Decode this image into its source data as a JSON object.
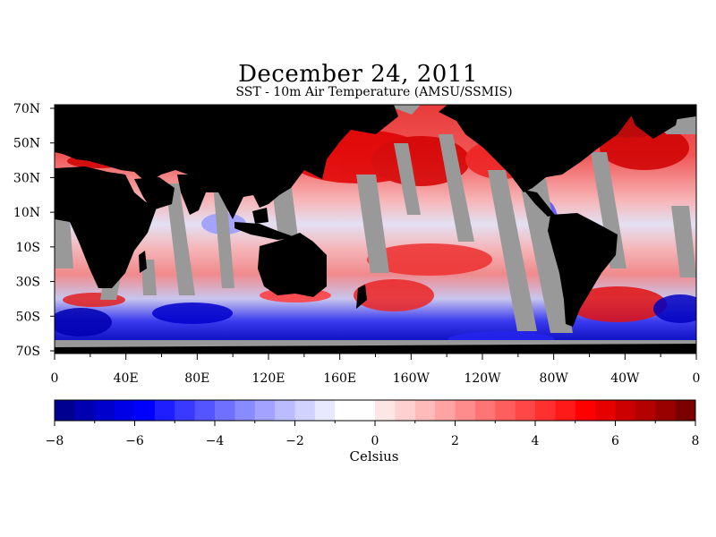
{
  "title": "December 24, 2011",
  "subtitle": "SST - 10m Air Temperature (AMSU/SSMIS)",
  "map": {
    "lat_labels": [
      "70N",
      "50N",
      "30N",
      "10N",
      "10S",
      "30S",
      "50S",
      "70S"
    ],
    "lon_labels": [
      "0",
      "40E",
      "80E",
      "120E",
      "160E",
      "160W",
      "120W",
      "80W",
      "40W",
      "0"
    ],
    "colors": {
      "land": "#000000",
      "no_data": "#999999",
      "ocean_base": "#f5c9cc"
    }
  },
  "colorbar": {
    "title": "Celsius",
    "min": -8,
    "max": 8,
    "step": 0.5,
    "tick_labels": [
      "-8",
      "-6",
      "-4",
      "-2",
      "0",
      "2",
      "4",
      "6",
      "8"
    ],
    "colors": [
      "#000090",
      "#0000b0",
      "#0000cc",
      "#0000e6",
      "#0000ff",
      "#1e1eff",
      "#3a3aff",
      "#5555ff",
      "#7070ff",
      "#8a8aff",
      "#a3a3ff",
      "#bbbbff",
      "#d2d2ff",
      "#e8e8ff",
      "#ffffff",
      "#ffffff",
      "#ffe6e6",
      "#ffd0d0",
      "#ffbaba",
      "#ffa3a3",
      "#ff8c8c",
      "#ff7575",
      "#ff5e5e",
      "#ff4747",
      "#ff3030",
      "#ff1a1a",
      "#ff0000",
      "#e60000",
      "#cc0000",
      "#b30000",
      "#990000",
      "#7a0000"
    ]
  }
}
